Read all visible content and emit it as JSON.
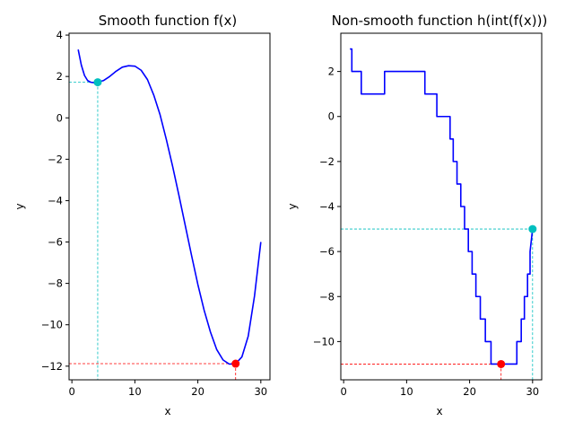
{
  "chart_data": [
    {
      "type": "line",
      "title": "Smooth function f(x)",
      "xlabel": "x",
      "ylabel": "y",
      "xlim": [
        -0.45,
        31.45
      ],
      "ylim": [
        -12.66,
        4.09
      ],
      "xticks": [
        0,
        10,
        20,
        30
      ],
      "yticks": [
        4,
        2,
        0,
        -2,
        -4,
        -6,
        -8,
        -10,
        -12
      ],
      "xtick_labels": [
        "0",
        "10",
        "20",
        "30"
      ],
      "ytick_labels": [
        "4",
        "2",
        "0",
        "−2",
        "−4",
        "−6",
        "−8",
        "−10",
        "−12"
      ],
      "series": [
        {
          "name": "f(x)",
          "color": "#0000ff",
          "x": [
            1,
            1.5,
            2,
            2.5,
            3,
            3.5,
            4,
            5,
            6,
            7,
            8,
            9,
            10,
            11,
            12,
            13,
            14,
            15,
            16,
            17,
            18,
            19,
            20,
            21,
            22,
            23,
            24,
            25,
            26,
            27,
            28,
            29,
            30
          ],
          "y": [
            3.3,
            2.55,
            2.05,
            1.8,
            1.72,
            1.7,
            1.72,
            1.8,
            2.0,
            2.25,
            2.45,
            2.52,
            2.5,
            2.3,
            1.85,
            1.1,
            0.15,
            -1.05,
            -2.35,
            -3.75,
            -5.2,
            -6.65,
            -8.05,
            -9.3,
            -10.35,
            -11.2,
            -11.7,
            -11.9,
            -11.88,
            -11.55,
            -10.55,
            -8.6,
            -6.0
          ]
        }
      ],
      "markers": [
        {
          "name": "start-point",
          "x": 4.1,
          "y": 1.72,
          "color": "#00bfbf"
        },
        {
          "name": "minimum-point",
          "x": 26,
          "y": -11.88,
          "color": "#ff0000"
        }
      ]
    },
    {
      "type": "line",
      "title": "Non-smooth function h(int(f(x)))",
      "xlabel": "x",
      "ylabel": "y",
      "xlim": [
        -0.45,
        31.45
      ],
      "ylim": [
        -11.7,
        3.7
      ],
      "xticks": [
        0,
        10,
        20,
        30
      ],
      "yticks": [
        2,
        0,
        -2,
        -4,
        -6,
        -8,
        -10
      ],
      "xtick_labels": [
        "0",
        "10",
        "20",
        "30"
      ],
      "ytick_labels": [
        "2",
        "0",
        "−2",
        "−4",
        "−6",
        "−8",
        "−10"
      ],
      "series": [
        {
          "name": "h(int(f(x)))",
          "color": "#0000ff",
          "x": [
            1,
            1.3,
            1.3,
            2.8,
            2.8,
            6.5,
            6.5,
            12.9,
            12.9,
            14.8,
            14.8,
            16.9,
            16.9,
            17.4,
            17.4,
            18.0,
            18.0,
            18.6,
            18.6,
            19.2,
            19.2,
            19.8,
            19.8,
            20.4,
            20.4,
            21.0,
            21.0,
            21.7,
            21.7,
            22.5,
            22.5,
            23.4,
            23.4,
            24.4,
            24.4,
            27.5,
            27.5,
            28.2,
            28.2,
            28.7,
            28.7,
            29.2,
            29.2,
            29.6,
            29.6,
            30
          ],
          "y": [
            3,
            3,
            2,
            2,
            1,
            1,
            2,
            2,
            1,
            1,
            0,
            0,
            -1,
            -1,
            -2,
            -2,
            -3,
            -3,
            -4,
            -4,
            -5,
            -5,
            -6,
            -6,
            -7,
            -7,
            -8,
            -8,
            -9,
            -9,
            -10,
            -10,
            -11,
            -11,
            -11,
            -11,
            -10,
            -10,
            -9,
            -9,
            -8,
            -8,
            -7,
            -7,
            -6,
            -5
          ]
        }
      ],
      "markers": [
        {
          "name": "start-point",
          "x": 30,
          "y": -5,
          "color": "#00bfbf"
        },
        {
          "name": "minimum-point",
          "x": 25,
          "y": -11,
          "color": "#ff0000"
        }
      ]
    }
  ]
}
